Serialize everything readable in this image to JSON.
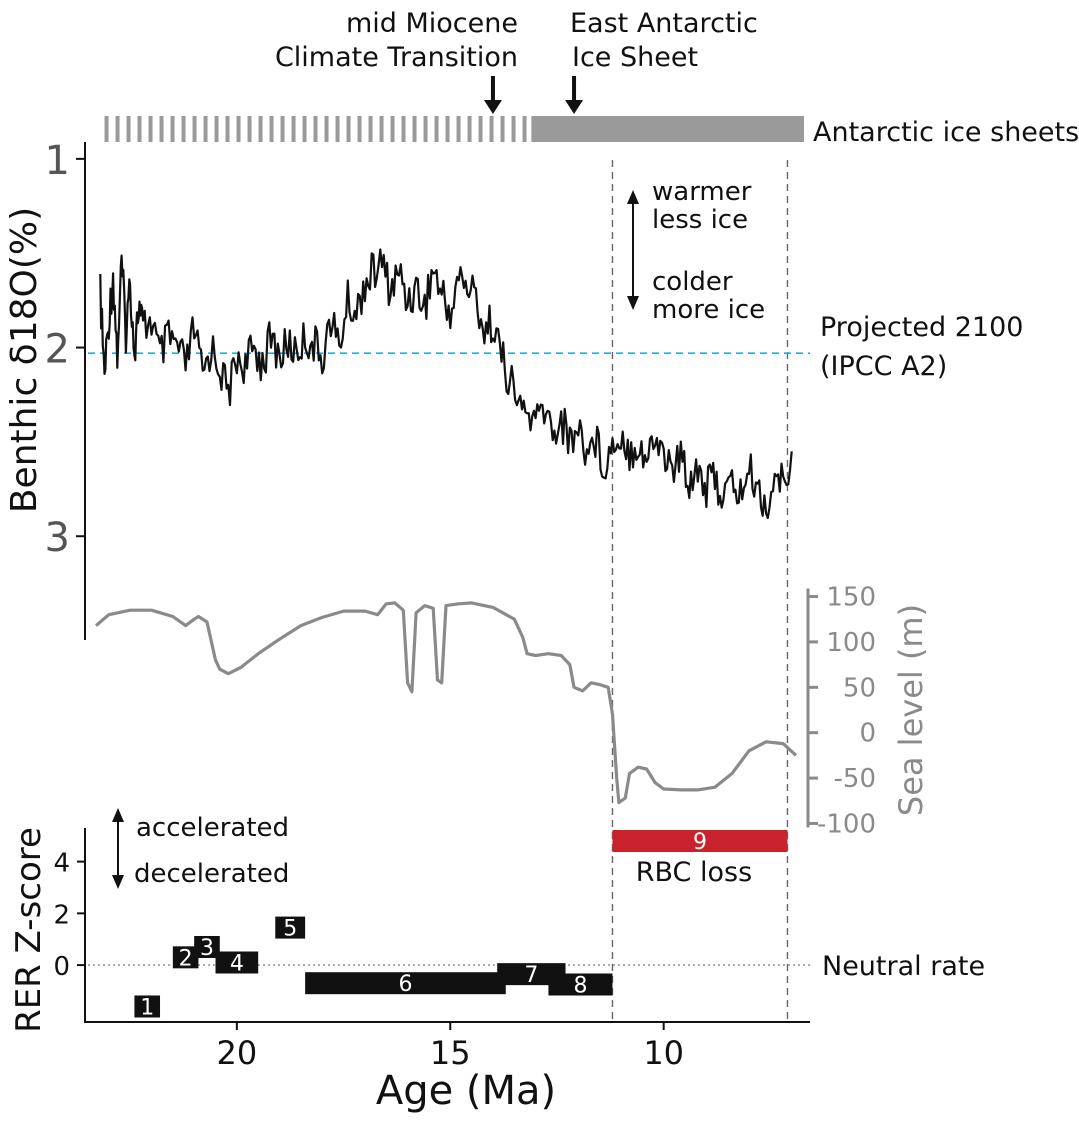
{
  "colors": {
    "ink": "#111111",
    "grey": "#8a8a8a",
    "ice_grey": "#9a9a9a",
    "projection": "#29abe2",
    "rbc_red": "#c8232c",
    "axis_grey": "#555555"
  },
  "chart_data": [
    {
      "type": "line",
      "name": "benthic-d18o",
      "ylabel": "Benthic δ18O(%)",
      "yaxis_inverted": true,
      "ylim": [
        0.9,
        3.55
      ],
      "yticks": [
        "1",
        "2",
        "3"
      ],
      "xlabel": "Age (Ma)",
      "xlim": [
        23.3,
        6.9
      ],
      "xaxis_reversed": true,
      "xticks": [
        "20",
        "15",
        "10"
      ],
      "series": [
        {
          "x": [
            23.2,
            23.1,
            23.0,
            22.9,
            22.8,
            22.7,
            22.6,
            22.5,
            22.4,
            22.3,
            22.2,
            22.0,
            21.8,
            21.6,
            21.4,
            21.2,
            21.0,
            20.8,
            20.6,
            20.4,
            20.2,
            20.0,
            19.8,
            19.6,
            19.4,
            19.2,
            19.0,
            18.8,
            18.6,
            18.4,
            18.2,
            18.0,
            17.8,
            17.6,
            17.4,
            17.2,
            17.0,
            16.8,
            16.6,
            16.4,
            16.2,
            16.0,
            15.8,
            15.6,
            15.4,
            15.2,
            15.0,
            14.8,
            14.6,
            14.4,
            14.2,
            14.0,
            13.8,
            13.6,
            13.4,
            13.2,
            13.0,
            12.8,
            12.6,
            12.4,
            12.2,
            12.0,
            11.8,
            11.6,
            11.4,
            11.2,
            11.0,
            10.8,
            10.6,
            10.4,
            10.2,
            10.0,
            9.8,
            9.6,
            9.4,
            9.2,
            9.0,
            8.8,
            8.6,
            8.4,
            8.2,
            8.0,
            7.8,
            7.6,
            7.4,
            7.2,
            7.0
          ],
          "y": [
            1.72,
            2.15,
            1.85,
            1.62,
            2.05,
            1.55,
            1.92,
            1.65,
            2.02,
            1.78,
            1.9,
            1.85,
            2.05,
            1.95,
            2.0,
            2.1,
            1.9,
            2.15,
            2.0,
            2.1,
            2.25,
            2.05,
            2.1,
            2.0,
            2.08,
            1.95,
            2.05,
            1.98,
            2.02,
            1.95,
            1.98,
            2.05,
            1.85,
            2.0,
            1.75,
            1.82,
            1.65,
            1.6,
            1.55,
            1.7,
            1.6,
            1.75,
            1.68,
            1.78,
            1.58,
            1.72,
            1.82,
            1.62,
            1.68,
            1.72,
            1.92,
            1.85,
            2.05,
            2.18,
            2.3,
            2.35,
            2.4,
            2.32,
            2.45,
            2.38,
            2.5,
            2.42,
            2.55,
            2.48,
            2.62,
            2.52,
            2.45,
            2.55,
            2.5,
            2.6,
            2.48,
            2.55,
            2.65,
            2.58,
            2.7,
            2.62,
            2.75,
            2.68,
            2.8,
            2.72,
            2.78,
            2.65,
            2.75,
            2.85,
            2.7,
            2.72,
            2.55
          ]
        }
      ],
      "annotations": {
        "projection": {
          "y": 2.03,
          "label_line1": "Projected 2100",
          "label_line2": "(IPCC A2)"
        },
        "direction_up": "warmer",
        "direction_up2": "less ice",
        "direction_down": "colder",
        "direction_down2": "more ice"
      }
    },
    {
      "type": "line",
      "name": "sea-level",
      "ylabel": "Sea level (m)",
      "ylim": [
        -105,
        155
      ],
      "yticks": [
        "150",
        "100",
        "50",
        "0",
        "-50",
        "-100"
      ],
      "ytick_values": [
        150,
        100,
        50,
        0,
        -50,
        -100
      ],
      "series": [
        {
          "x": [
            23.3,
            23.0,
            22.5,
            22.0,
            21.5,
            21.2,
            21.0,
            20.9,
            20.7,
            20.5,
            20.4,
            20.2,
            19.9,
            19.5,
            19.0,
            18.5,
            18.0,
            17.5,
            17.0,
            16.7,
            16.5,
            16.3,
            16.1,
            16.0,
            15.9,
            15.8,
            15.6,
            15.4,
            15.3,
            15.2,
            15.1,
            14.8,
            14.5,
            14.0,
            13.5,
            13.3,
            13.2,
            13.0,
            12.7,
            12.4,
            12.2,
            12.1,
            11.9,
            11.7,
            11.5,
            11.3,
            11.2,
            11.1,
            11.05,
            10.9,
            10.8,
            10.6,
            10.4,
            10.2,
            10.0,
            9.6,
            9.2,
            8.8,
            8.4,
            8.0,
            7.6,
            7.2,
            6.9
          ],
          "y": [
            118,
            130,
            135,
            135,
            128,
            118,
            125,
            128,
            122,
            80,
            70,
            65,
            72,
            87,
            103,
            118,
            127,
            134,
            134,
            130,
            142,
            143,
            135,
            55,
            45,
            132,
            140,
            137,
            58,
            55,
            140,
            142,
            143,
            138,
            125,
            105,
            87,
            85,
            87,
            85,
            75,
            50,
            46,
            55,
            53,
            50,
            20,
            -50,
            -77,
            -72,
            -45,
            -38,
            -40,
            -55,
            -62,
            -63,
            -63,
            -60,
            -45,
            -20,
            -10,
            -12,
            -25
          ]
        }
      ]
    },
    {
      "type": "bar",
      "name": "rer-z-score",
      "ylabel": "RER Z-score",
      "ylim": [
        -2.2,
        5.3
      ],
      "yticks": [
        "4",
        "2",
        "0"
      ],
      "ytick_values": [
        4,
        2,
        0
      ],
      "direction_up": "accelerated",
      "direction_down": "decelerated",
      "neutral_label": "Neutral rate",
      "segments": [
        {
          "label": "1",
          "x_start": 22.4,
          "x_end": 21.8,
          "value": -1.6
        },
        {
          "label": "2",
          "x_start": 21.5,
          "x_end": 20.9,
          "value": 0.3
        },
        {
          "label": "3",
          "x_start": 21.0,
          "x_end": 20.4,
          "value": 0.7
        },
        {
          "label": "4",
          "x_start": 20.5,
          "x_end": 19.5,
          "value": 0.1
        },
        {
          "label": "5",
          "x_start": 19.1,
          "x_end": 18.4,
          "value": 1.45
        },
        {
          "label": "6",
          "x_start": 18.4,
          "x_end": 13.7,
          "value": -0.7
        },
        {
          "label": "7",
          "x_start": 13.9,
          "x_end": 12.3,
          "value": -0.35
        },
        {
          "label": "8",
          "x_start": 12.7,
          "x_end": 11.2,
          "value": -0.75
        }
      ],
      "rbc": {
        "label": "9",
        "caption": "RBC loss",
        "x_start": 11.2,
        "x_end": 7.1
      }
    }
  ],
  "ice_sheets": {
    "label": "Antarctic ice sheets",
    "dashed_from": 23.1,
    "dashed_to": 13.2,
    "solid_from": 13.1,
    "solid_to": 6.9
  },
  "events": [
    {
      "line1": "mid Miocene",
      "line2": "Climate Transition",
      "x": 14.0
    },
    {
      "line1": "East Antarctic",
      "line2": "Ice Sheet",
      "x": 12.1
    }
  ],
  "vertical_markers": [
    11.2,
    7.1
  ]
}
